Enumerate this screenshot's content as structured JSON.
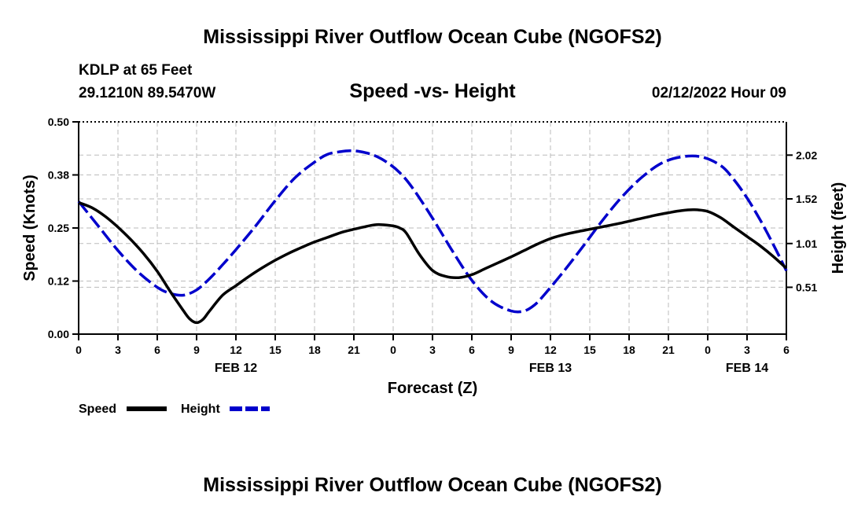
{
  "chart_data": {
    "type": "line",
    "title": "Mississippi River Outflow Ocean Cube (NGOFS2)",
    "station": "KDLP at 65 Feet",
    "location": "29.1210N  89.5470W",
    "subtitle": "Speed -vs- Height",
    "timestamp": "02/12/2022 Hour 09",
    "footer_title": "Mississippi River Outflow Ocean Cube (NGOFS2)",
    "xlabel": "Forecast (Z)",
    "ylabel_left": "Speed (Knots)",
    "ylabel_right": "Height (feet)",
    "x_range": [
      0,
      54
    ],
    "x_tick_step": 3,
    "x_tick_labels": [
      "0",
      "3",
      "6",
      "9",
      "12",
      "15",
      "18",
      "21",
      "0",
      "3",
      "6",
      "9",
      "12",
      "15",
      "18",
      "21",
      "0",
      "3",
      "6"
    ],
    "date_labels": [
      {
        "hour": 12,
        "label": "FEB 12"
      },
      {
        "hour": 36,
        "label": "FEB 13"
      },
      {
        "hour": 51,
        "label": "FEB 14"
      }
    ],
    "ylim_left": [
      0,
      0.5
    ],
    "y_ticks_left": [
      0,
      0.125,
      0.25,
      0.375,
      0.5
    ],
    "y_tick_labels_left": [
      "0.00",
      "0.12",
      "0.25",
      "0.38",
      "0.50"
    ],
    "ylim_right": [
      -0.025,
      2.4
    ],
    "y_ticks_right": [
      0.51,
      1.01,
      1.52,
      2.02
    ],
    "y_tick_labels_right": [
      "0.51",
      "1.01",
      "1.52",
      "2.02"
    ],
    "grid": true,
    "series": [
      {
        "name": "Speed",
        "axis": "left",
        "color": "#000000",
        "style": "solid",
        "x": [
          0,
          1,
          2,
          3,
          4,
          5,
          6,
          7,
          8,
          8.5,
          9,
          9.5,
          10,
          11,
          12,
          13,
          14,
          15,
          16,
          17,
          18,
          19,
          20,
          21,
          22,
          22.5,
          23,
          24,
          24.5,
          25,
          26,
          27,
          28,
          29,
          30,
          31,
          32,
          33,
          34,
          35,
          36,
          37,
          38,
          39,
          40,
          41,
          42,
          43,
          44,
          45,
          46,
          47,
          48,
          49,
          50,
          51,
          52,
          53,
          54
        ],
        "values": [
          0.31,
          0.298,
          0.278,
          0.252,
          0.222,
          0.188,
          0.148,
          0.1,
          0.055,
          0.035,
          0.027,
          0.035,
          0.055,
          0.092,
          0.114,
          0.136,
          0.156,
          0.174,
          0.19,
          0.204,
          0.217,
          0.228,
          0.239,
          0.247,
          0.254,
          0.257,
          0.258,
          0.255,
          0.25,
          0.238,
          0.188,
          0.15,
          0.136,
          0.133,
          0.14,
          0.154,
          0.168,
          0.182,
          0.197,
          0.212,
          0.225,
          0.234,
          0.241,
          0.247,
          0.253,
          0.259,
          0.266,
          0.273,
          0.28,
          0.286,
          0.291,
          0.293,
          0.289,
          0.274,
          0.252,
          0.23,
          0.208,
          0.183,
          0.155
        ]
      },
      {
        "name": "Height",
        "axis": "right",
        "color": "#0000cc",
        "style": "dashed",
        "x": [
          0,
          1.5,
          3,
          4.5,
          6,
          7,
          8,
          9,
          10,
          11,
          12,
          13.5,
          15,
          16.5,
          18,
          19,
          20,
          20.7,
          21.5,
          22.5,
          23.5,
          24.5,
          25.5,
          27,
          28.5,
          30,
          31.5,
          33,
          34,
          34.8,
          35.5,
          37,
          38.5,
          40,
          41.5,
          43,
          44.5,
          46,
          47.5,
          49,
          50,
          51,
          52,
          53,
          54
        ],
        "values": [
          1.49,
          1.21,
          0.93,
          0.69,
          0.51,
          0.44,
          0.42,
          0.48,
          0.61,
          0.77,
          0.94,
          1.21,
          1.5,
          1.76,
          1.94,
          2.03,
          2.06,
          2.07,
          2.06,
          2.02,
          1.94,
          1.82,
          1.64,
          1.3,
          0.93,
          0.59,
          0.35,
          0.24,
          0.24,
          0.31,
          0.42,
          0.69,
          0.98,
          1.28,
          1.55,
          1.77,
          1.93,
          2.0,
          2.0,
          1.9,
          1.74,
          1.53,
          1.28,
          1.0,
          0.7
        ]
      }
    ]
  }
}
